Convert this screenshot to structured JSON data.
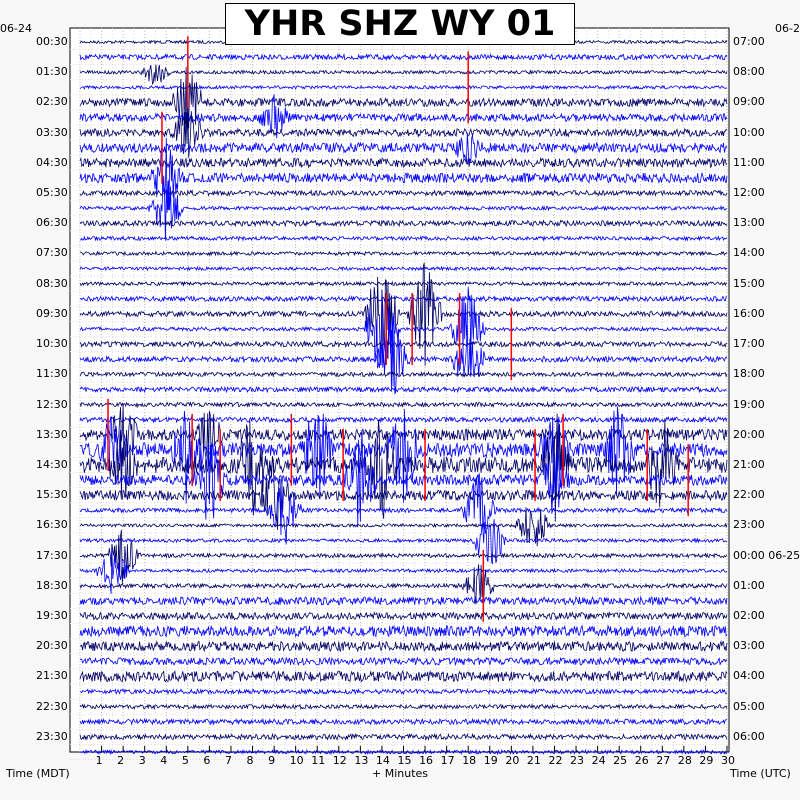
{
  "chart_data": {
    "type": "heatmap",
    "title": "YHR SHZ WY 01",
    "left_date": "06-24",
    "right_date": "06-2",
    "left_axis_label": "Time (MDT)",
    "right_axis_label": "Time (UTC)",
    "x_axis_label": "+ Minutes",
    "x_ticks": [
      "1",
      "2",
      "3",
      "4",
      "5",
      "6",
      "7",
      "8",
      "9",
      "10",
      "11",
      "12",
      "13",
      "14",
      "15",
      "16",
      "17",
      "18",
      "19",
      "20",
      "21",
      "22",
      "23",
      "24",
      "25",
      "26",
      "27",
      "28",
      "29",
      "30"
    ],
    "x_range": [
      0,
      30
    ],
    "left_ticks": [
      "00:30",
      "01:30",
      "02:30",
      "03:30",
      "04:30",
      "05:30",
      "06:30",
      "07:30",
      "08:30",
      "09:30",
      "10:30",
      "11:30",
      "12:30",
      "13:30",
      "14:30",
      "15:30",
      "16:30",
      "17:30",
      "18:30",
      "19:30",
      "20:30",
      "21:30",
      "22:30",
      "23:30"
    ],
    "right_ticks": [
      "07:00",
      "08:00",
      "09:00",
      "10:00",
      "11:00",
      "12:00",
      "13:00",
      "14:00",
      "15:00",
      "16:00",
      "17:00",
      "18:00",
      "19:00",
      "20:00",
      "21:00",
      "22:00",
      "23:00",
      "00:00 06-25",
      "01:00",
      "02:00",
      "03:00",
      "04:00",
      "05:00",
      "06:00"
    ],
    "trace_colors": [
      "#000066",
      "#0000ff",
      "#ff0000"
    ],
    "num_traces": 48,
    "minutes_per_trace": 30
  }
}
